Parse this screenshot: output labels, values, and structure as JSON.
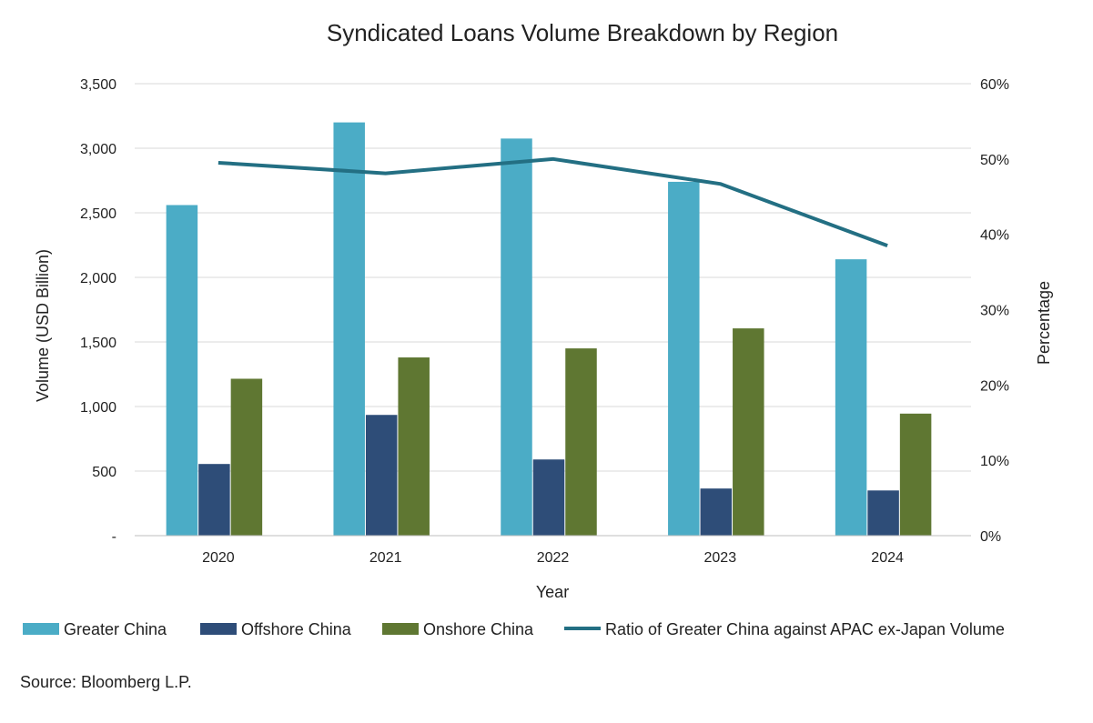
{
  "chart_data": {
    "type": "bar",
    "title": "Syndicated Loans Volume Breakdown by Region",
    "xlabel": "Year",
    "ylabel": "Volume (USD Billion)",
    "y2label": "Percentage",
    "categories": [
      "2020",
      "2021",
      "2022",
      "2023",
      "2024"
    ],
    "ylim": [
      0,
      3500
    ],
    "y_ticks": [
      0,
      500,
      1000,
      1500,
      2000,
      2500,
      3000,
      3500
    ],
    "y_tick_labels": [
      "-",
      "500",
      "1,000",
      "1,500",
      "2,000",
      "2,500",
      "3,000",
      "3,500"
    ],
    "y2lim": [
      0,
      60
    ],
    "y2_ticks": [
      0,
      10,
      20,
      30,
      40,
      50,
      60
    ],
    "y2_tick_labels": [
      "0%",
      "10%",
      "20%",
      "30%",
      "40%",
      "50%",
      "60%"
    ],
    "grid": true,
    "legend_position": "bottom",
    "series": [
      {
        "name": "Greater China",
        "type": "bar",
        "axis": "left",
        "color": "#4BACC6",
        "values": [
          2560,
          3200,
          3075,
          2740,
          2140
        ]
      },
      {
        "name": "Offshore China",
        "type": "bar",
        "axis": "left",
        "color": "#2E4D78",
        "values": [
          555,
          935,
          590,
          365,
          350
        ]
      },
      {
        "name": "Onshore China",
        "type": "bar",
        "axis": "left",
        "color": "#5F7732",
        "values": [
          1215,
          1380,
          1450,
          1605,
          945
        ]
      },
      {
        "name": "Ratio of Greater China against APAC ex-Japan Volume",
        "type": "line",
        "axis": "right",
        "color": "#236F83",
        "values": [
          49.5,
          48.1,
          50.0,
          46.7,
          38.5
        ]
      }
    ]
  },
  "source": "Source: Bloomberg L.P."
}
